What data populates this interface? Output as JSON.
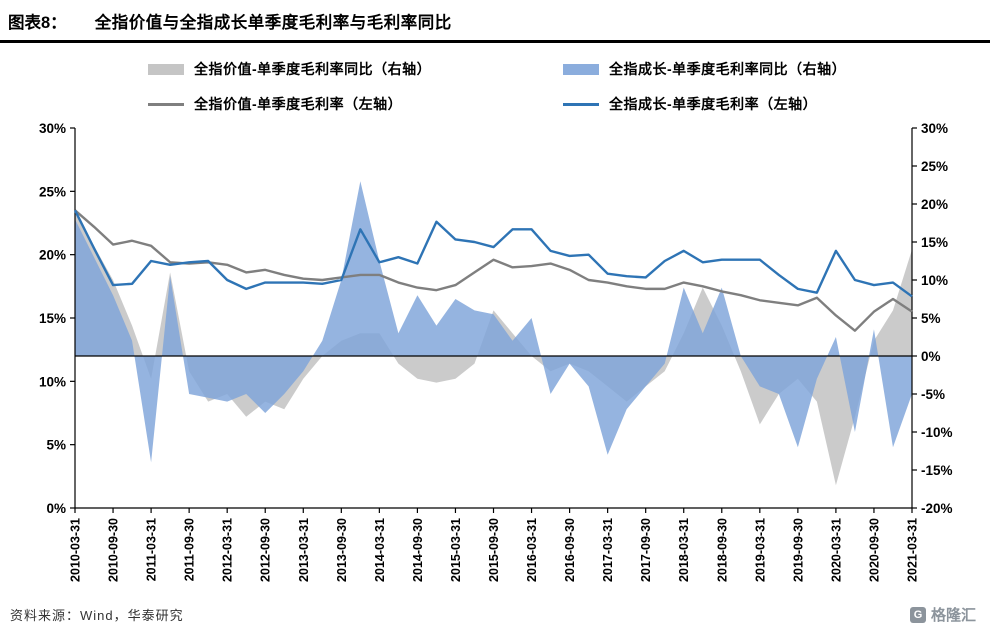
{
  "header": {
    "tag": "图表8：",
    "title": "全指价值与全指成长单季度毛利率与毛利率同比"
  },
  "footer": {
    "source": "资料来源：Wind，华泰研究",
    "logo_text": "格隆汇",
    "logo_mark": "G"
  },
  "chart_data": {
    "type": "area",
    "title": "全指价值与全指成长单季度毛利率与毛利率同比",
    "xlabel": "",
    "ylabel": "",
    "grid": false,
    "legend_position": "top",
    "x_label_every": 2,
    "left_axis": {
      "min": 0,
      "max": 30,
      "step": 5,
      "tick_labels": [
        "30%",
        "25%",
        "20%",
        "15%",
        "10%",
        "5%",
        "0%"
      ]
    },
    "right_axis": {
      "min": -20,
      "max": 30,
      "step": 5,
      "tick_labels": [
        "30%",
        "25%",
        "20%",
        "15%",
        "10%",
        "5%",
        "0%",
        "-5%",
        "-10%",
        "-15%",
        "-20%"
      ]
    },
    "x": [
      "2010-03-31",
      "2010-06-30",
      "2010-09-30",
      "2010-12-31",
      "2011-03-31",
      "2011-06-30",
      "2011-09-30",
      "2011-12-31",
      "2012-03-31",
      "2012-06-30",
      "2012-09-30",
      "2012-12-31",
      "2013-03-31",
      "2013-06-30",
      "2013-09-30",
      "2013-12-31",
      "2014-03-31",
      "2014-06-30",
      "2014-09-30",
      "2014-12-31",
      "2015-03-31",
      "2015-06-30",
      "2015-09-30",
      "2015-12-31",
      "2016-03-31",
      "2016-06-30",
      "2016-09-30",
      "2016-12-31",
      "2017-03-31",
      "2017-06-30",
      "2017-09-30",
      "2017-12-31",
      "2018-03-31",
      "2018-06-30",
      "2018-09-30",
      "2018-12-31",
      "2019-03-31",
      "2019-06-30",
      "2019-09-30",
      "2019-12-31",
      "2020-03-31",
      "2020-06-30",
      "2020-09-30",
      "2020-12-31",
      "2021-03-31"
    ],
    "series": [
      {
        "name": "全指价值-单季度毛利率同比（右轴）",
        "type": "area",
        "axis": "right",
        "color": "#bfbfbf",
        "values": [
          19,
          14.5,
          10,
          4,
          -3,
          11,
          -2,
          -6,
          -5,
          -8,
          -6,
          -7,
          -3,
          0,
          2,
          3,
          3,
          -1,
          -3,
          -3.5,
          -3,
          -1,
          6,
          3,
          0,
          -2,
          -1,
          -2,
          -4,
          -6,
          -4,
          -2,
          3,
          9,
          4,
          -2,
          -9,
          -5,
          -3,
          -6,
          -17,
          -8,
          2,
          6,
          14
        ]
      },
      {
        "name": "全指成长-单季度毛利率同比（右轴）",
        "type": "area",
        "axis": "right",
        "color": "#7ea4d9",
        "values": [
          18,
          13,
          8,
          2,
          -14,
          10.5,
          -5,
          -5.5,
          -6,
          -5,
          -7.5,
          -5,
          -2,
          2,
          10,
          23,
          12.5,
          3,
          8,
          4,
          7.5,
          6,
          5.5,
          2,
          5,
          -5,
          -1,
          -4,
          -13,
          -7,
          -4,
          -1,
          9,
          3,
          9,
          0,
          -4,
          -5,
          -12,
          -3,
          2.5,
          -10,
          3.5,
          -12,
          -5
        ]
      },
      {
        "name": "全指价值-单季度毛利率（左轴）",
        "type": "line",
        "axis": "left",
        "color": "#7f7f7f",
        "values": [
          23.5,
          22.2,
          20.8,
          21.1,
          20.7,
          19.4,
          19.3,
          19.4,
          19.2,
          18.6,
          18.8,
          18.4,
          18.1,
          18.0,
          18.2,
          18.4,
          18.4,
          17.8,
          17.4,
          17.2,
          17.6,
          18.6,
          19.6,
          19.0,
          19.1,
          19.3,
          18.8,
          18.0,
          17.8,
          17.5,
          17.3,
          17.3,
          17.8,
          17.5,
          17.1,
          16.8,
          16.4,
          16.2,
          16.0,
          16.6,
          15.2,
          14.0,
          15.5,
          16.5,
          15.5
        ]
      },
      {
        "name": "全指成长-单季度毛利率（左轴）",
        "type": "line",
        "axis": "left",
        "color": "#2e74b5",
        "values": [
          23.5,
          20.5,
          17.6,
          17.7,
          19.5,
          19.2,
          19.4,
          19.5,
          18.0,
          17.3,
          17.8,
          17.8,
          17.8,
          17.7,
          18.0,
          22.0,
          19.4,
          19.8,
          19.3,
          22.6,
          21.2,
          21.0,
          20.6,
          22.0,
          22.0,
          20.3,
          19.9,
          20.0,
          18.5,
          18.3,
          18.2,
          19.5,
          20.3,
          19.4,
          19.6,
          19.6,
          19.6,
          18.4,
          17.3,
          17.0,
          20.3,
          18.0,
          17.6,
          17.8,
          16.7
        ]
      }
    ]
  }
}
